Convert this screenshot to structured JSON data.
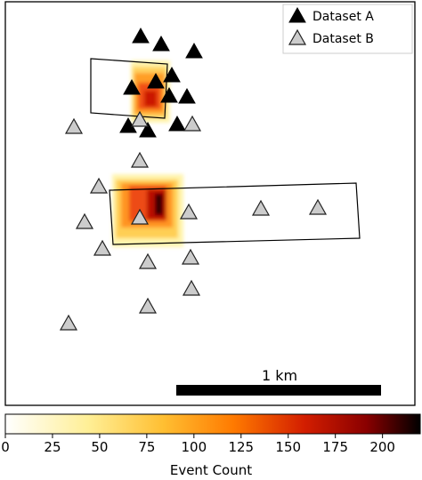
{
  "chart_data": {
    "type": "heatmap",
    "legend_position": "top-right",
    "legend": [
      {
        "label": "Dataset A",
        "marker": "triangle",
        "color": "#000000"
      },
      {
        "label": "Dataset B",
        "marker": "triangle",
        "color": "#cccccc"
      }
    ],
    "scalebar_label": "1 km",
    "colorbar": {
      "label": "Event Count",
      "min": 0,
      "max": 220,
      "ticks": [
        0,
        25,
        50,
        75,
        100,
        125,
        150,
        175,
        200
      ],
      "colormap": "hot_r"
    }
  }
}
